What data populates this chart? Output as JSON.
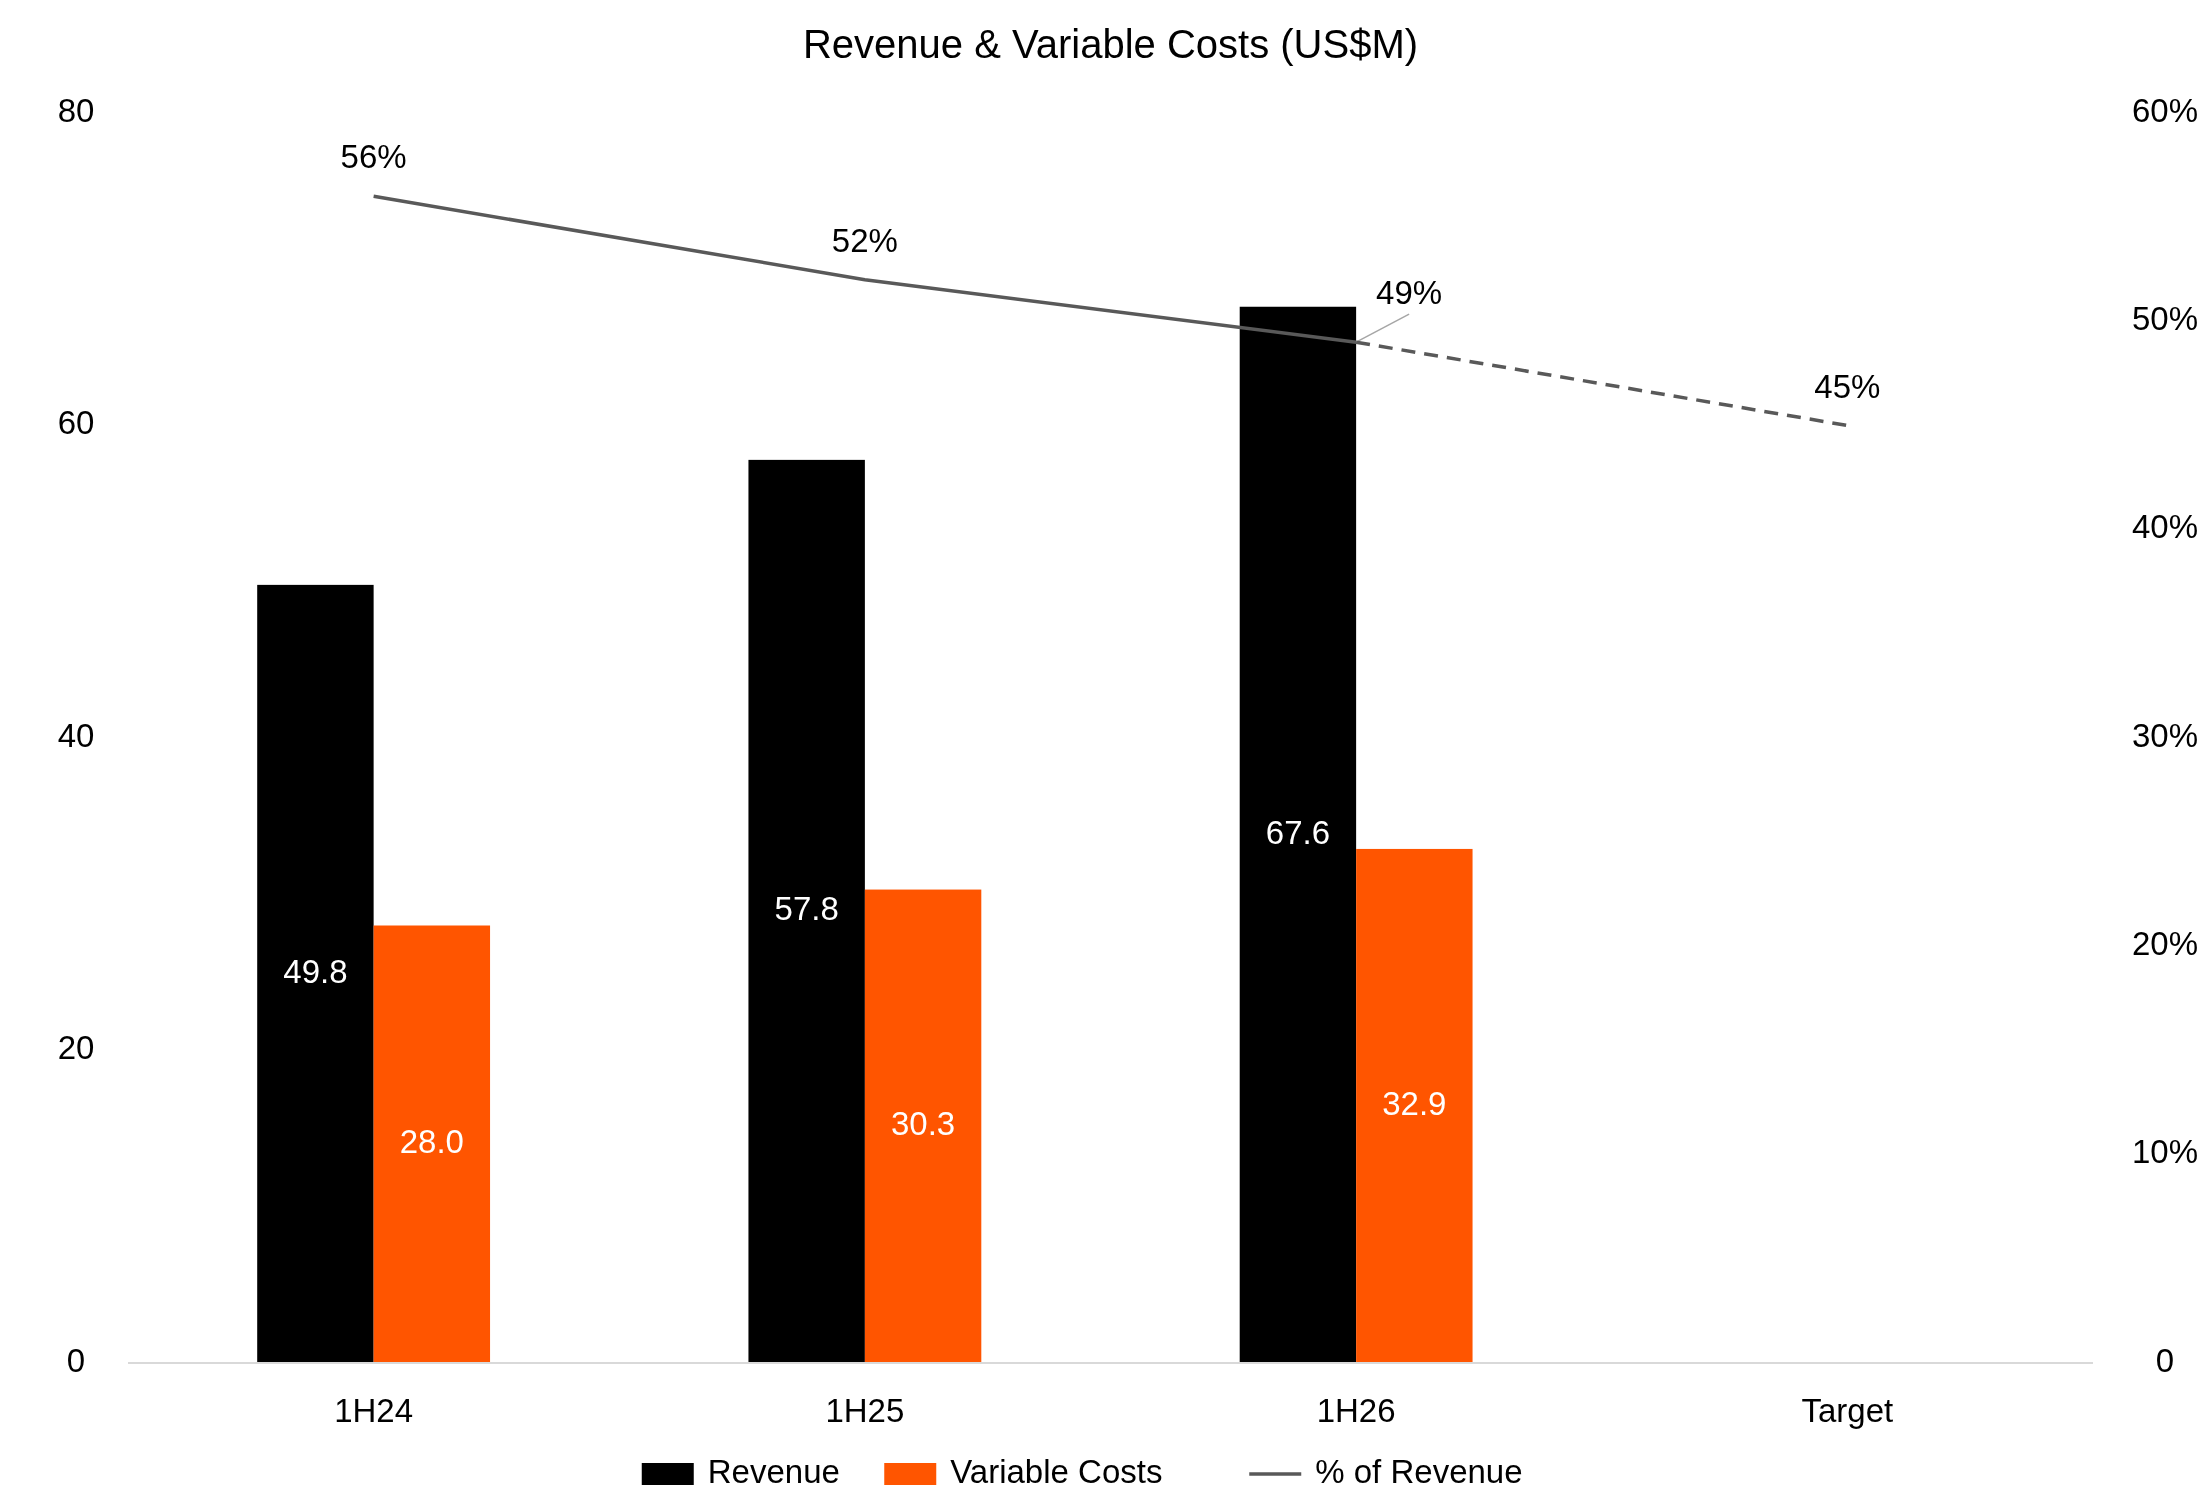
{
  "chart_data": {
    "type": "bar",
    "title": "Revenue & Variable Costs (US$M)",
    "categories": [
      "1H24",
      "1H25",
      "1H26",
      "Target"
    ],
    "series": [
      {
        "name": "Revenue",
        "color": "#000000",
        "values": [
          49.8,
          57.8,
          67.6,
          null
        ],
        "value_labels": [
          "49.8",
          "57.8",
          "67.6",
          null
        ]
      },
      {
        "name": "Variable Costs",
        "color": "#ff5500",
        "values": [
          28.0,
          30.3,
          32.9,
          null
        ],
        "value_labels": [
          "28.0",
          "30.3",
          "32.9",
          null
        ]
      },
      {
        "name": "% of Revenue",
        "type": "line",
        "axis": "y2",
        "color": "#595959",
        "line_style": "solid",
        "values": [
          56,
          52,
          49,
          null
        ],
        "value_labels": [
          "56%",
          "52%",
          "49%",
          null
        ]
      },
      {
        "type": "line",
        "axis": "y2",
        "color": "#595959",
        "line_style": "dashed",
        "values": [
          null,
          null,
          49,
          45
        ],
        "value_labels": [
          null,
          null,
          null,
          "45%"
        ]
      }
    ],
    "ylim": [
      0,
      80
    ],
    "yticks": [
      0,
      20,
      40,
      60,
      80
    ],
    "y2lim": [
      0,
      60
    ],
    "y2ticks": [
      {
        "value": 0,
        "label": "0"
      },
      {
        "value": 10,
        "label": "10%"
      },
      {
        "value": 20,
        "label": "20%"
      },
      {
        "value": 30,
        "label": "30%"
      },
      {
        "value": 40,
        "label": "40%"
      },
      {
        "value": 50,
        "label": "50%"
      },
      {
        "value": 60,
        "label": "60%"
      }
    ],
    "grid": false,
    "legend": "bottom"
  }
}
